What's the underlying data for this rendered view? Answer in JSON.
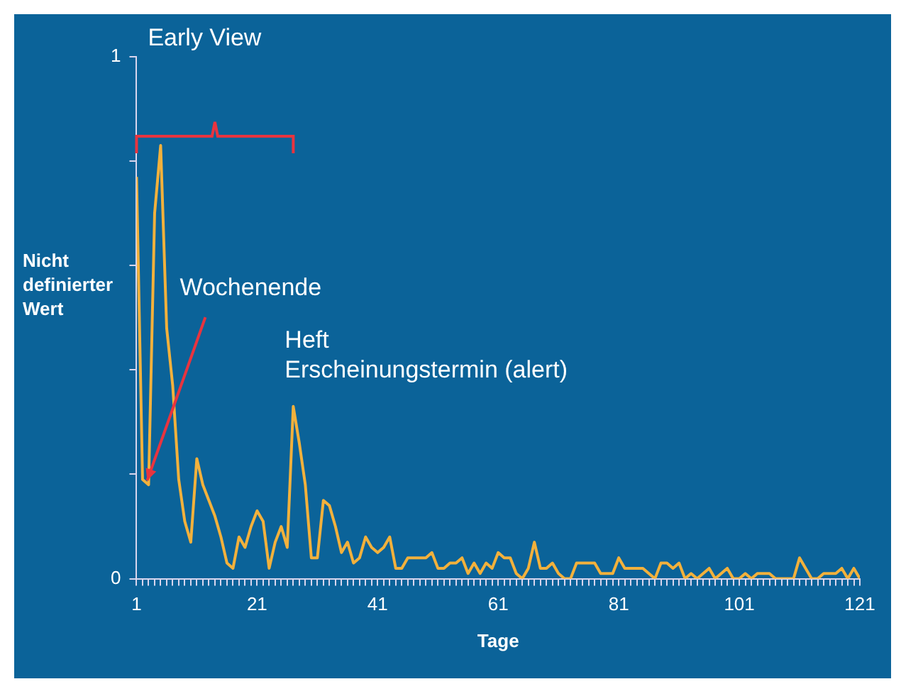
{
  "chart_data": {
    "type": "line",
    "xlabel": "Tage",
    "ylabel": "Nicht definierter Wert",
    "annotations": [
      "Early View",
      {
        "text": "Wochenende",
        "x": 3,
        "y": 0.18
      },
      {
        "text": "Heft\nErscheinungstermin (alert)",
        "x": 27,
        "y": 0.33
      }
    ],
    "x": [
      1,
      2,
      3,
      4,
      5,
      6,
      7,
      8,
      9,
      10,
      11,
      12,
      13,
      14,
      15,
      16,
      17,
      18,
      19,
      20,
      21,
      22,
      23,
      24,
      25,
      26,
      27,
      28,
      29,
      30,
      31,
      32,
      33,
      34,
      35,
      36,
      37,
      38,
      39,
      40,
      41,
      42,
      43,
      44,
      45,
      46,
      47,
      48,
      49,
      50,
      51,
      52,
      53,
      54,
      55,
      56,
      57,
      58,
      59,
      60,
      61,
      62,
      63,
      64,
      65,
      66,
      67,
      68,
      69,
      70,
      71,
      72,
      73,
      74,
      75,
      76,
      77,
      78,
      79,
      80,
      81,
      82,
      83,
      84,
      85,
      86,
      87,
      88,
      89,
      90,
      91,
      92,
      93,
      94,
      95,
      96,
      97,
      98,
      99,
      100,
      101,
      102,
      103,
      104,
      105,
      106,
      107,
      108,
      109,
      110,
      111,
      112,
      113,
      114,
      115,
      116,
      117,
      118,
      119,
      120,
      121
    ],
    "series": [
      {
        "color": "#f2b13c",
        "values": [
          0.77,
          0.19,
          0.18,
          0.7,
          0.83,
          0.48,
          0.37,
          0.19,
          0.11,
          0.07,
          0.23,
          0.18,
          0.15,
          0.12,
          0.08,
          0.03,
          0.02,
          0.08,
          0.06,
          0.1,
          0.13,
          0.11,
          0.02,
          0.07,
          0.1,
          0.06,
          0.33,
          0.26,
          0.18,
          0.04,
          0.04,
          0.15,
          0.14,
          0.1,
          0.05,
          0.07,
          0.03,
          0.04,
          0.08,
          0.06,
          0.05,
          0.06,
          0.08,
          0.02,
          0.02,
          0.04,
          0.04,
          0.04,
          0.04,
          0.05,
          0.02,
          0.02,
          0.03,
          0.03,
          0.04,
          0.01,
          0.03,
          0.01,
          0.03,
          0.02,
          0.05,
          0.04,
          0.04,
          0.01,
          0,
          0.02,
          0.07,
          0.02,
          0.02,
          0.03,
          0.01,
          0,
          0,
          0.03,
          0.03,
          0.03,
          0.03,
          0.01,
          0.01,
          0.01,
          0.04,
          0.02,
          0.02,
          0.02,
          0.02,
          0.01,
          0,
          0.03,
          0.03,
          0.02,
          0.03,
          0,
          0.01,
          0,
          0.01,
          0.02,
          0,
          0.01,
          0.02,
          0,
          0,
          0.01,
          0,
          0.01,
          0.01,
          0.01,
          0,
          0,
          0,
          0,
          0.04,
          0.02,
          0,
          0,
          0.01,
          0.01,
          0.01,
          0.02,
          0,
          0.02,
          0
        ]
      }
    ],
    "xlim": [
      1,
      121
    ],
    "ylim": [
      0,
      1
    ],
    "xticks": [
      1,
      {
        "value": 2,
        "label": null
      },
      {
        "value": 3,
        "label": null
      },
      {
        "value": 4,
        "label": null
      },
      {
        "value": 5,
        "label": null
      },
      {
        "value": 6,
        "label": null
      },
      {
        "value": 7,
        "label": null
      },
      {
        "value": 8,
        "label": null
      },
      {
        "value": 9,
        "label": null
      },
      {
        "value": 10,
        "label": null
      },
      {
        "value": 11,
        "label": null
      },
      {
        "value": 12,
        "label": null
      },
      {
        "value": 13,
        "label": null
      },
      {
        "value": 14,
        "label": null
      },
      {
        "value": 15,
        "label": null
      },
      {
        "value": 16,
        "label": null
      },
      {
        "value": 17,
        "label": null
      },
      {
        "value": 18,
        "label": null
      },
      {
        "value": 19,
        "label": null
      },
      {
        "value": 20,
        "label": null
      },
      21,
      {
        "value": 22,
        "label": null
      },
      {
        "value": 23,
        "label": null
      },
      {
        "value": 24,
        "label": null
      },
      {
        "value": 25,
        "label": null
      },
      {
        "value": 26,
        "label": null
      },
      {
        "value": 27,
        "label": null
      },
      {
        "value": 28,
        "label": null
      },
      {
        "value": 29,
        "label": null
      },
      {
        "value": 30,
        "label": null
      },
      {
        "value": 31,
        "label": null
      },
      {
        "value": 32,
        "label": null
      },
      {
        "value": 33,
        "label": null
      },
      {
        "value": 34,
        "label": null
      },
      {
        "value": 35,
        "label": null
      },
      {
        "value": 36,
        "label": null
      },
      {
        "value": 37,
        "label": null
      },
      {
        "value": 38,
        "label": null
      },
      {
        "value": 39,
        "label": null
      },
      {
        "value": 40,
        "label": null
      },
      41,
      {
        "value": 42,
        "label": null
      },
      {
        "value": 43,
        "label": null
      },
      {
        "value": 44,
        "label": null
      },
      {
        "value": 45,
        "label": null
      },
      {
        "value": 46,
        "label": null
      },
      {
        "value": 47,
        "label": null
      },
      {
        "value": 48,
        "label": null
      },
      {
        "value": 49,
        "label": null
      },
      {
        "value": 50,
        "label": null
      },
      {
        "value": 51,
        "label": null
      },
      {
        "value": 52,
        "label": null
      },
      {
        "value": 53,
        "label": null
      },
      {
        "value": 54,
        "label": null
      },
      {
        "value": 55,
        "label": null
      },
      {
        "value": 56,
        "label": null
      },
      {
        "value": 57,
        "label": null
      },
      {
        "value": 58,
        "label": null
      },
      {
        "value": 59,
        "label": null
      },
      {
        "value": 60,
        "label": null
      },
      61,
      {
        "value": 62,
        "label": null
      },
      {
        "value": 63,
        "label": null
      },
      {
        "value": 64,
        "label": null
      },
      {
        "value": 65,
        "label": null
      },
      {
        "value": 66,
        "label": null
      },
      {
        "value": 67,
        "label": null
      },
      {
        "value": 68,
        "label": null
      },
      {
        "value": 69,
        "label": null
      },
      {
        "value": 70,
        "label": null
      },
      {
        "value": 71,
        "label": null
      },
      {
        "value": 72,
        "label": null
      },
      {
        "value": 73,
        "label": null
      },
      {
        "value": 74,
        "label": null
      },
      {
        "value": 75,
        "label": null
      },
      {
        "value": 76,
        "label": null
      },
      {
        "value": 77,
        "label": null
      },
      {
        "value": 78,
        "label": null
      },
      {
        "value": 79,
        "label": null
      },
      {
        "value": 80,
        "label": null
      },
      81,
      {
        "value": 82,
        "label": null
      },
      {
        "value": 83,
        "label": null
      },
      {
        "value": 84,
        "label": null
      },
      {
        "value": 85,
        "label": null
      },
      {
        "value": 86,
        "label": null
      },
      {
        "value": 87,
        "label": null
      },
      {
        "value": 88,
        "label": null
      },
      {
        "value": 89,
        "label": null
      },
      {
        "value": 90,
        "label": null
      },
      {
        "value": 91,
        "label": null
      },
      {
        "value": 92,
        "label": null
      },
      {
        "value": 93,
        "label": null
      },
      {
        "value": 94,
        "label": null
      },
      {
        "value": 95,
        "label": null
      },
      {
        "value": 96,
        "label": null
      },
      {
        "value": 97,
        "label": null
      },
      {
        "value": 98,
        "label": null
      },
      {
        "value": 99,
        "label": null
      },
      {
        "value": 100,
        "label": null
      },
      101,
      {
        "value": 102,
        "label": null
      },
      {
        "value": 103,
        "label": null
      },
      {
        "value": 104,
        "label": null
      },
      {
        "value": 105,
        "label": null
      },
      {
        "value": 106,
        "label": null
      },
      {
        "value": 107,
        "label": null
      },
      {
        "value": 108,
        "label": null
      },
      {
        "value": 109,
        "label": null
      },
      {
        "value": 110,
        "label": null
      },
      {
        "value": 111,
        "label": null
      },
      {
        "value": 112,
        "label": null
      },
      {
        "value": 113,
        "label": null
      },
      {
        "value": 114,
        "label": null
      },
      {
        "value": 115,
        "label": null
      },
      {
        "value": 116,
        "label": null
      },
      {
        "value": 117,
        "label": null
      },
      {
        "value": 118,
        "label": null
      },
      {
        "value": 119,
        "label": null
      },
      {
        "value": 120,
        "label": null
      },
      121
    ],
    "yticks": [
      0,
      {
        "value": 0.2,
        "label": null
      },
      {
        "value": 0.4,
        "label": null
      },
      {
        "value": 0.6,
        "label": null
      },
      {
        "value": 0.8,
        "label": null
      },
      1
    ]
  }
}
